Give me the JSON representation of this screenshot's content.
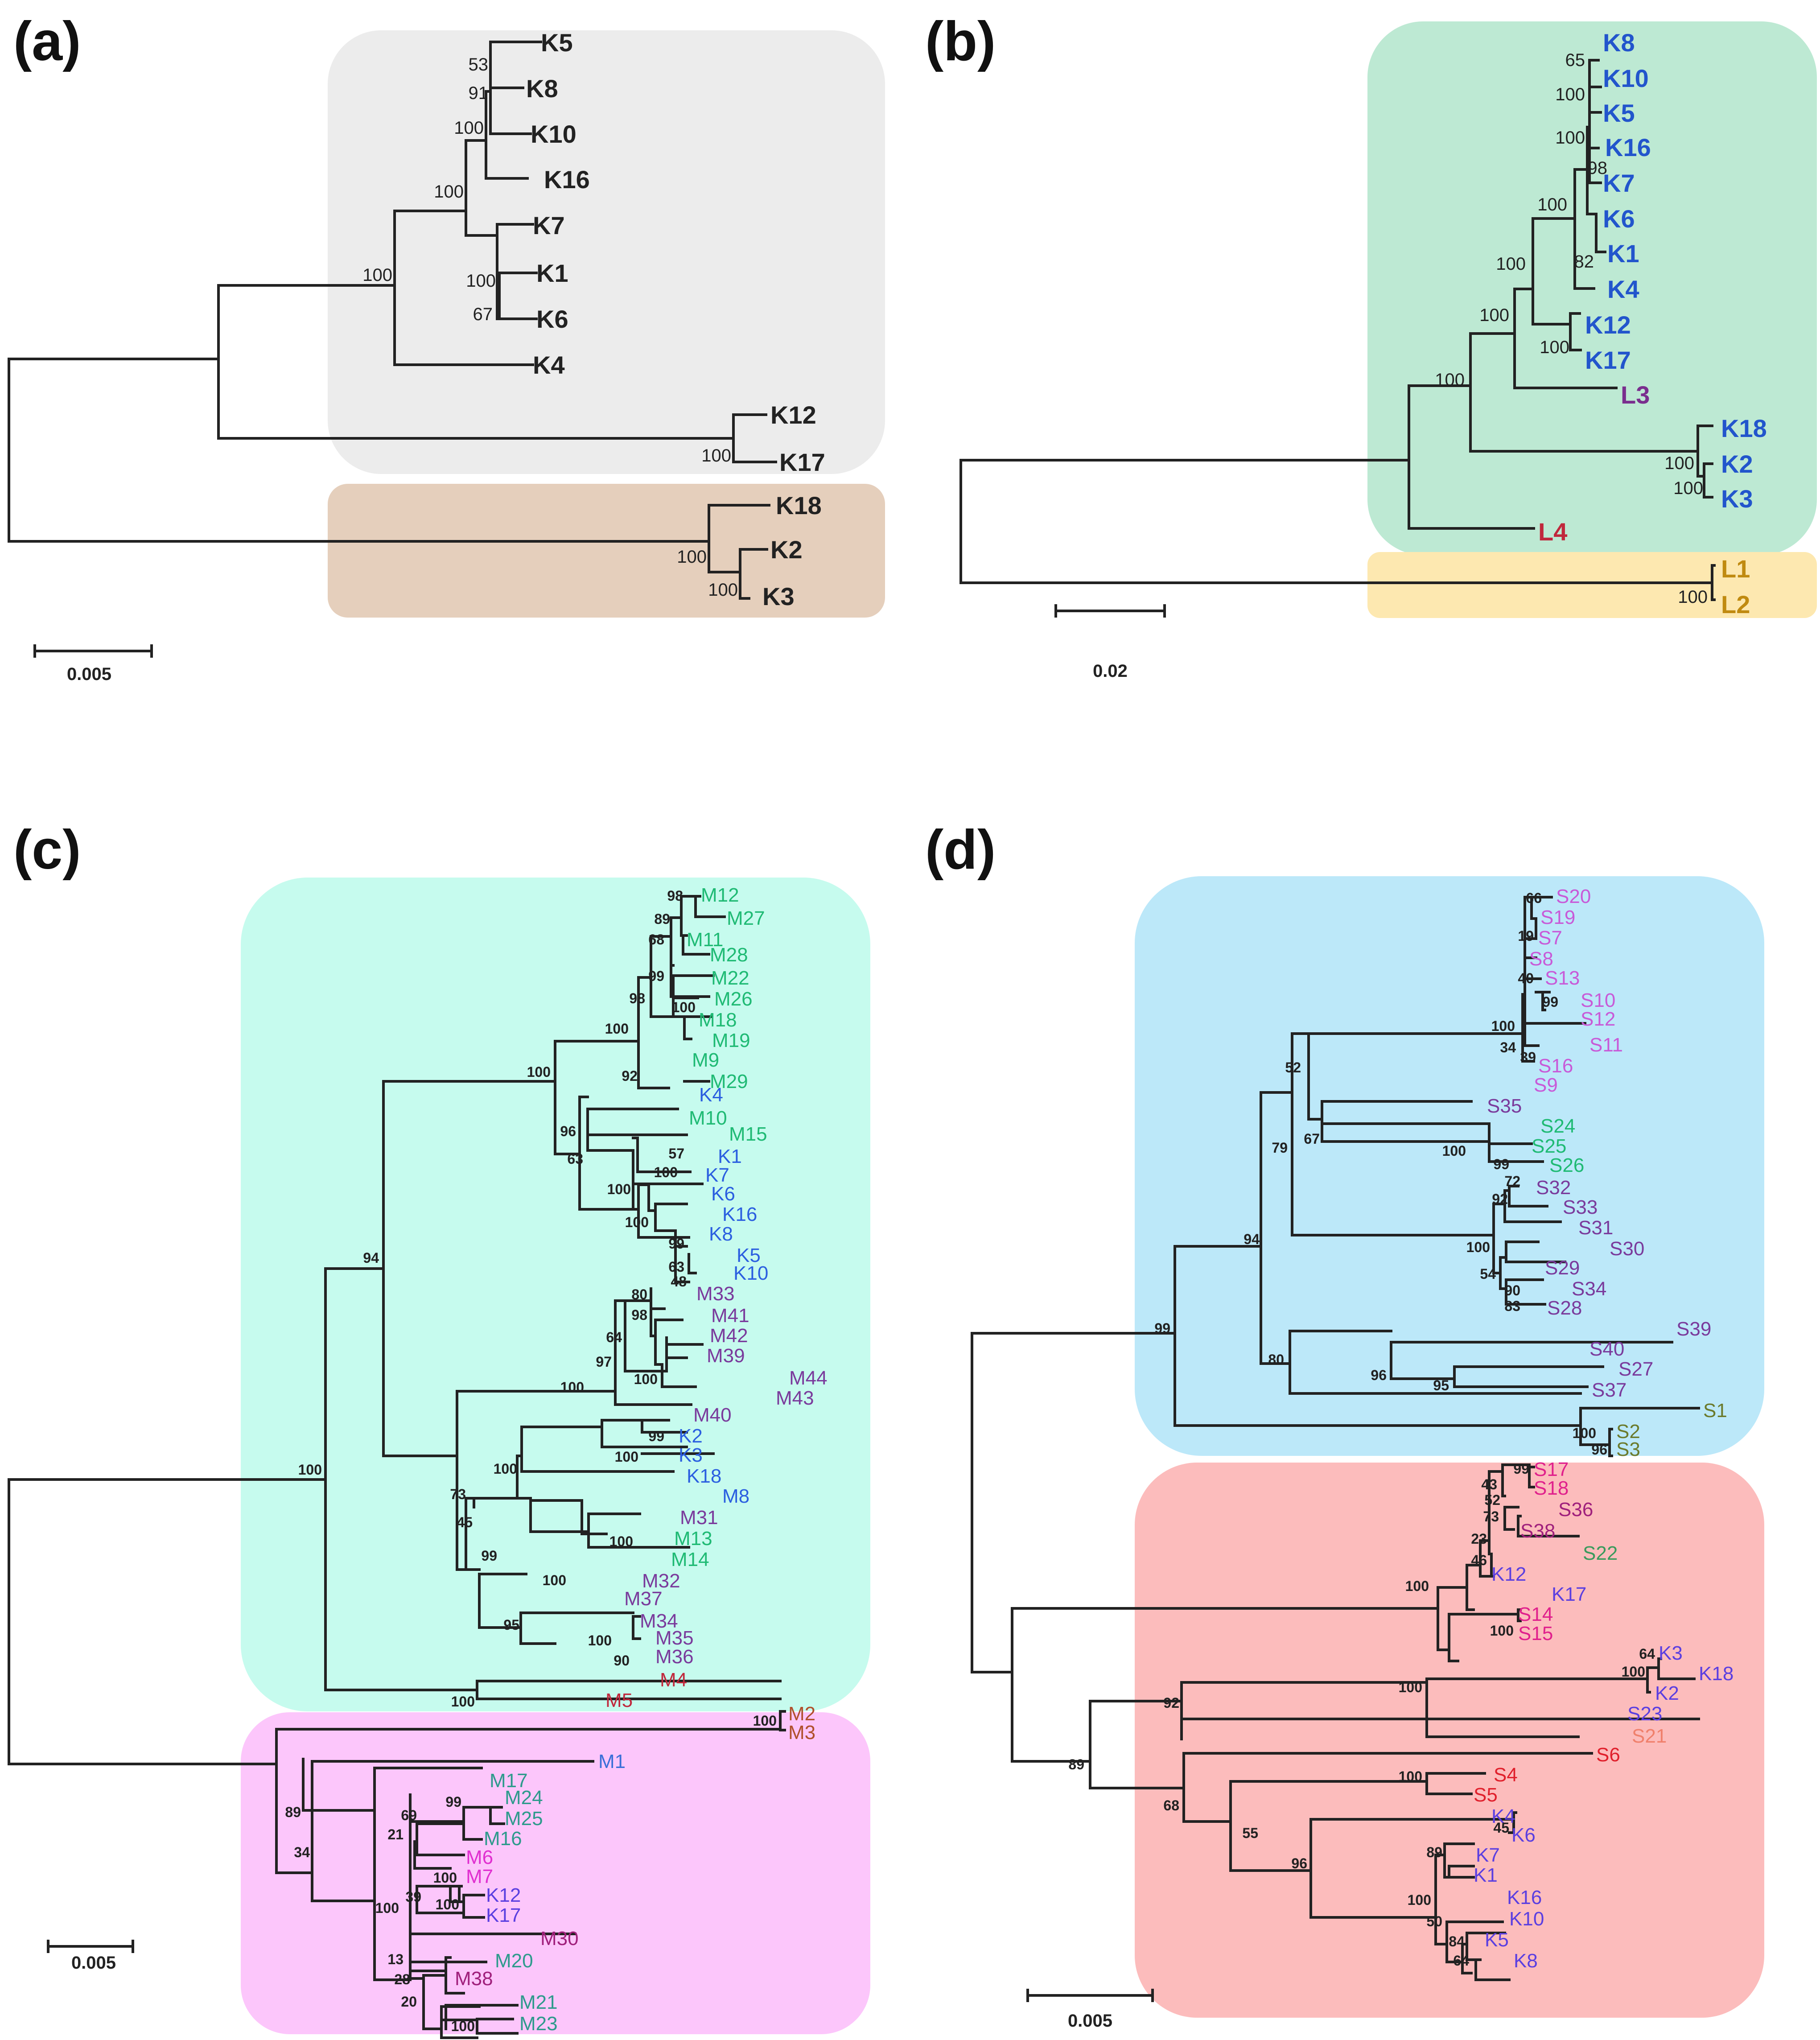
{
  "panels": {
    "a": {
      "letter": "(a)",
      "scale_label": "0.005",
      "group_colors": [
        "#ececec",
        "#e5cfbc"
      ],
      "tips": [
        {
          "label": "K5",
          "color": "#222222"
        },
        {
          "label": "K8",
          "color": "#222222"
        },
        {
          "label": "K10",
          "color": "#222222"
        },
        {
          "label": "K16",
          "color": "#222222"
        },
        {
          "label": "K7",
          "color": "#222222"
        },
        {
          "label": "K1",
          "color": "#222222"
        },
        {
          "label": "K6",
          "color": "#222222"
        },
        {
          "label": "K4",
          "color": "#222222"
        },
        {
          "label": "K12",
          "color": "#222222"
        },
        {
          "label": "K17",
          "color": "#222222"
        },
        {
          "label": "K18",
          "color": "#222222"
        },
        {
          "label": "K2",
          "color": "#222222"
        },
        {
          "label": "K3",
          "color": "#222222"
        }
      ],
      "bootstrap": [
        "53",
        "91",
        "100",
        "100",
        "100",
        "100",
        "67",
        "100",
        "100",
        "100"
      ]
    },
    "b": {
      "letter": "(b)",
      "scale_label": "0.02",
      "group_colors": [
        "#bde9d3",
        "#fde8b0"
      ],
      "tips": [
        {
          "label": "K8",
          "color": "#2255cc"
        },
        {
          "label": "K10",
          "color": "#2255cc"
        },
        {
          "label": "K5",
          "color": "#2255cc"
        },
        {
          "label": "K16",
          "color": "#2255cc"
        },
        {
          "label": "K7",
          "color": "#2255cc"
        },
        {
          "label": "K6",
          "color": "#2255cc"
        },
        {
          "label": "K1",
          "color": "#2255cc"
        },
        {
          "label": "K4",
          "color": "#2255cc"
        },
        {
          "label": "K12",
          "color": "#2255cc"
        },
        {
          "label": "K17",
          "color": "#2255cc"
        },
        {
          "label": "L3",
          "color": "#7a2e8e"
        },
        {
          "label": "K18",
          "color": "#2255cc"
        },
        {
          "label": "K2",
          "color": "#2255cc"
        },
        {
          "label": "K3",
          "color": "#2255cc"
        },
        {
          "label": "L4",
          "color": "#c0283c"
        },
        {
          "label": "L1",
          "color": "#c08a10"
        },
        {
          "label": "L2",
          "color": "#c08a10"
        }
      ],
      "bootstrap": [
        "65",
        "100",
        "100",
        "98",
        "82",
        "100",
        "100",
        "100",
        "100",
        "100",
        "100",
        "100",
        "100"
      ]
    },
    "c": {
      "letter": "(c)",
      "scale_label": "0.005",
      "group_colors": [
        "#c6fbee",
        "#fcc6fb"
      ],
      "tips": [
        {
          "label": "M12",
          "color": "#1fba74"
        },
        {
          "label": "M27",
          "color": "#1fba74"
        },
        {
          "label": "M11",
          "color": "#1fba74"
        },
        {
          "label": "M28",
          "color": "#1fba74"
        },
        {
          "label": "M22",
          "color": "#1fba74"
        },
        {
          "label": "M26",
          "color": "#1fba74"
        },
        {
          "label": "M18",
          "color": "#1fba74"
        },
        {
          "label": "M19",
          "color": "#1fba74"
        },
        {
          "label": "M9",
          "color": "#1fba74"
        },
        {
          "label": "M29",
          "color": "#1fba74"
        },
        {
          "label": "K4",
          "color": "#2b5fe0"
        },
        {
          "label": "M10",
          "color": "#1fba74"
        },
        {
          "label": "M15",
          "color": "#1fba74"
        },
        {
          "label": "K1",
          "color": "#2b5fe0"
        },
        {
          "label": "K7",
          "color": "#2b5fe0"
        },
        {
          "label": "K6",
          "color": "#2b5fe0"
        },
        {
          "label": "K16",
          "color": "#2b5fe0"
        },
        {
          "label": "K8",
          "color": "#2b5fe0"
        },
        {
          "label": "K5",
          "color": "#2b5fe0"
        },
        {
          "label": "K10",
          "color": "#2b5fe0"
        },
        {
          "label": "M33",
          "color": "#7a3b9c"
        },
        {
          "label": "M41",
          "color": "#7a3b9c"
        },
        {
          "label": "M42",
          "color": "#7a3b9c"
        },
        {
          "label": "M39",
          "color": "#7a3b9c"
        },
        {
          "label": "M44",
          "color": "#7a3b9c"
        },
        {
          "label": "M43",
          "color": "#7a3b9c"
        },
        {
          "label": "M40",
          "color": "#7a3b9c"
        },
        {
          "label": "K2",
          "color": "#2b5fe0"
        },
        {
          "label": "K3",
          "color": "#2b5fe0"
        },
        {
          "label": "K18",
          "color": "#2b5fe0"
        },
        {
          "label": "M8",
          "color": "#2b5fe0"
        },
        {
          "label": "M31",
          "color": "#7a3b9c"
        },
        {
          "label": "M13",
          "color": "#1fba74"
        },
        {
          "label": "M14",
          "color": "#1fba74"
        },
        {
          "label": "M32",
          "color": "#7a3b9c"
        },
        {
          "label": "M37",
          "color": "#7a3b9c"
        },
        {
          "label": "M34",
          "color": "#7a3b9c"
        },
        {
          "label": "M35",
          "color": "#7a3b9c"
        },
        {
          "label": "M36",
          "color": "#7a3b9c"
        },
        {
          "label": "M4",
          "color": "#c0283c"
        },
        {
          "label": "M5",
          "color": "#c0283c"
        },
        {
          "label": "M2",
          "color": "#b0502c"
        },
        {
          "label": "M3",
          "color": "#b0502c"
        },
        {
          "label": "M1",
          "color": "#3a6fd8"
        },
        {
          "label": "M17",
          "color": "#2e9a8c"
        },
        {
          "label": "M24",
          "color": "#2e9a8c"
        },
        {
          "label": "M25",
          "color": "#2e9a8c"
        },
        {
          "label": "M16",
          "color": "#2e9a8c"
        },
        {
          "label": "M6",
          "color": "#e030d0"
        },
        {
          "label": "M7",
          "color": "#e030d0"
        },
        {
          "label": "K12",
          "color": "#5b3fe0"
        },
        {
          "label": "K17",
          "color": "#5b3fe0"
        },
        {
          "label": "M30",
          "color": "#a0207c"
        },
        {
          "label": "M20",
          "color": "#2e9a8c"
        },
        {
          "label": "M38",
          "color": "#a0207c"
        },
        {
          "label": "M21",
          "color": "#2e9a8c"
        },
        {
          "label": "M23",
          "color": "#2e9a8c"
        }
      ],
      "bootstrap": [
        "98",
        "89",
        "68",
        "99",
        "98",
        "100",
        "100",
        "92",
        "100",
        "96",
        "63",
        "57",
        "100",
        "100",
        "100",
        "99",
        "63",
        "48",
        "80",
        "98",
        "64",
        "97",
        "100",
        "100",
        "99",
        "100",
        "100",
        "73",
        "45",
        "100",
        "99",
        "100",
        "95",
        "100",
        "90",
        "94",
        "100",
        "100",
        "100",
        "89",
        "34",
        "99",
        "69",
        "21",
        "100",
        "100",
        "39",
        "100",
        "13",
        "28",
        "20",
        "100"
      ]
    },
    "d": {
      "letter": "(d)",
      "scale_label": "0.005",
      "group_colors": [
        "#bce8f9",
        "#fcbcbc"
      ],
      "tips": [
        {
          "label": "S20",
          "color": "#c85ad8"
        },
        {
          "label": "S19",
          "color": "#c85ad8"
        },
        {
          "label": "S7",
          "color": "#c85ad8"
        },
        {
          "label": "S8",
          "color": "#c85ad8"
        },
        {
          "label": "S13",
          "color": "#c85ad8"
        },
        {
          "label": "S10",
          "color": "#c85ad8"
        },
        {
          "label": "S12",
          "color": "#c85ad8"
        },
        {
          "label": "S11",
          "color": "#c85ad8"
        },
        {
          "label": "S16",
          "color": "#c85ad8"
        },
        {
          "label": "S9",
          "color": "#c85ad8"
        },
        {
          "label": "S35",
          "color": "#7a3b9c"
        },
        {
          "label": "S24",
          "color": "#1fba74"
        },
        {
          "label": "S25",
          "color": "#1fba74"
        },
        {
          "label": "S26",
          "color": "#1fba74"
        },
        {
          "label": "S32",
          "color": "#7a3b9c"
        },
        {
          "label": "S33",
          "color": "#7a3b9c"
        },
        {
          "label": "S31",
          "color": "#7a3b9c"
        },
        {
          "label": "S30",
          "color": "#7a3b9c"
        },
        {
          "label": "S29",
          "color": "#7a3b9c"
        },
        {
          "label": "S34",
          "color": "#7a3b9c"
        },
        {
          "label": "S28",
          "color": "#7a3b9c"
        },
        {
          "label": "S39",
          "color": "#7a3b9c"
        },
        {
          "label": "S40",
          "color": "#7a3b9c"
        },
        {
          "label": "S27",
          "color": "#7a3b9c"
        },
        {
          "label": "S37",
          "color": "#7a3b9c"
        },
        {
          "label": "S1",
          "color": "#6b7a2c"
        },
        {
          "label": "S2",
          "color": "#6b7a2c"
        },
        {
          "label": "S3",
          "color": "#6b7a2c"
        },
        {
          "label": "S17",
          "color": "#e0208c"
        },
        {
          "label": "S18",
          "color": "#e0208c"
        },
        {
          "label": "S36",
          "color": "#a0207c"
        },
        {
          "label": "S38",
          "color": "#a0207c"
        },
        {
          "label": "S22",
          "color": "#3a9a5c"
        },
        {
          "label": "K12",
          "color": "#5b3fe0"
        },
        {
          "label": "K17",
          "color": "#5b3fe0"
        },
        {
          "label": "S14",
          "color": "#e0208c"
        },
        {
          "label": "S15",
          "color": "#e0208c"
        },
        {
          "label": "K3",
          "color": "#5b3fe0"
        },
        {
          "label": "K18",
          "color": "#5b3fe0"
        },
        {
          "label": "K2",
          "color": "#5b3fe0"
        },
        {
          "label": "S23",
          "color": "#5b3fe0"
        },
        {
          "label": "S21",
          "color": "#f0806c"
        },
        {
          "label": "S6",
          "color": "#e0202c"
        },
        {
          "label": "S4",
          "color": "#e0202c"
        },
        {
          "label": "S5",
          "color": "#e0202c"
        },
        {
          "label": "K4",
          "color": "#5b3fe0"
        },
        {
          "label": "K6",
          "color": "#5b3fe0"
        },
        {
          "label": "K7",
          "color": "#5b3fe0"
        },
        {
          "label": "K1",
          "color": "#5b3fe0"
        },
        {
          "label": "K16",
          "color": "#5b3fe0"
        },
        {
          "label": "K10",
          "color": "#5b3fe0"
        },
        {
          "label": "K5",
          "color": "#5b3fe0"
        },
        {
          "label": "K8",
          "color": "#5b3fe0"
        }
      ],
      "bootstrap": [
        "66",
        "19",
        "40",
        "99",
        "100",
        "34",
        "39",
        "52",
        "67",
        "100",
        "99",
        "72",
        "92",
        "100",
        "54",
        "90",
        "83",
        "79",
        "94",
        "80",
        "96",
        "95",
        "99",
        "100",
        "96",
        "99",
        "43",
        "52",
        "73",
        "23",
        "46",
        "100",
        "100",
        "64",
        "100",
        "100",
        "92",
        "89",
        "100",
        "68",
        "55",
        "45",
        "96",
        "89",
        "100",
        "50",
        "84",
        "64"
      ]
    }
  }
}
